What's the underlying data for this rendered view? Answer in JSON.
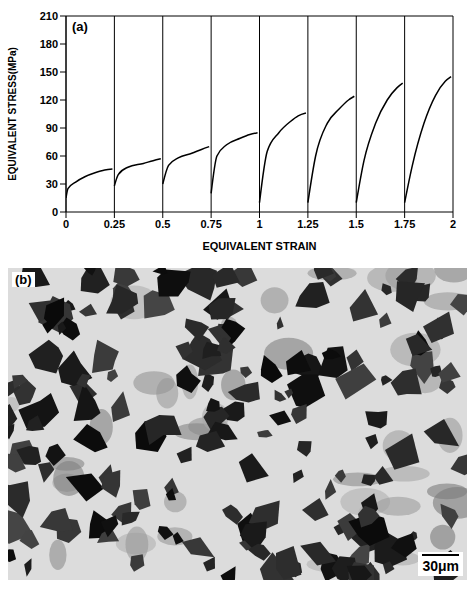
{
  "chart_data": {
    "type": "line",
    "x_label": "EQUIVALENT STRAIN",
    "y_label": "EQUIVALENT STRESS(MPa)",
    "annotations": [
      "(a)"
    ],
    "x": [
      0,
      0.01,
      0.05,
      0.1,
      0.15,
      0.2,
      0.24,
      0.245,
      0.25,
      0.27,
      0.32,
      0.4,
      0.45,
      0.49,
      0.495,
      0.5,
      0.53,
      0.58,
      0.65,
      0.7,
      0.74,
      0.745,
      0.75,
      0.78,
      0.83,
      0.9,
      0.95,
      0.99,
      0.995,
      1,
      1.04,
      1.1,
      1.16,
      1.2,
      1.24,
      1.245,
      1.25,
      1.29,
      1.35,
      1.41,
      1.46,
      1.49,
      1.495,
      1.5,
      1.54,
      1.6,
      1.66,
      1.71,
      1.74,
      1.745,
      1.75,
      1.79,
      1.85,
      1.91,
      1.96,
      1.99
    ],
    "values": [
      15,
      25,
      32,
      38,
      42,
      45,
      46,
      null,
      28,
      40,
      48,
      52,
      55,
      57,
      null,
      30,
      50,
      58,
      63,
      67,
      70,
      null,
      20,
      60,
      72,
      79,
      83,
      85,
      null,
      10,
      65,
      85,
      97,
      103,
      106,
      null,
      10,
      60,
      95,
      110,
      120,
      124,
      null,
      10,
      55,
      95,
      120,
      133,
      138,
      null,
      10,
      50,
      95,
      125,
      140,
      145
    ],
    "color": "#000000",
    "xlim": [
      0,
      2
    ],
    "xticks": [
      0,
      0.25,
      0.5,
      0.75,
      1,
      1.25,
      1.5,
      1.75,
      2
    ],
    "ylim": [
      0,
      210
    ],
    "yticks": [
      0,
      30,
      60,
      90,
      120,
      150,
      180,
      210
    ],
    "grid": true
  },
  "micrograph": {
    "label": "(b)",
    "scale_bar": "30μm"
  }
}
